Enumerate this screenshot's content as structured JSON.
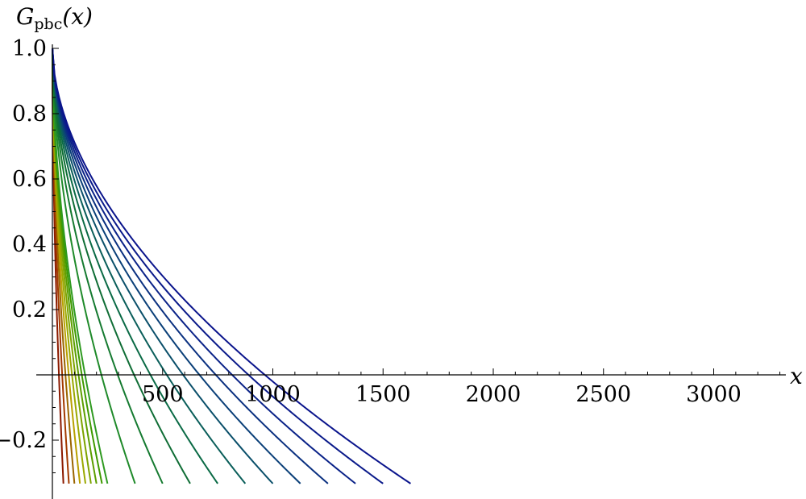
{
  "chart_data": {
    "type": "line",
    "title": "",
    "ylabel": {
      "main": "G",
      "subscript": "pbc",
      "arg": "(x)"
    },
    "xlabel": "x",
    "xlim": [
      0,
      3300
    ],
    "ylim": [
      -0.345,
      1.05
    ],
    "x_ticks": [
      500,
      1000,
      1500,
      2000,
      2500,
      3000
    ],
    "x_tick_labels": [
      "500",
      "1000",
      "1500",
      "2000",
      "2500",
      "3000"
    ],
    "y_ticks": [
      -0.2,
      0.2,
      0.4,
      0.6,
      0.8,
      1.0
    ],
    "y_tick_labels": [
      "−0.2",
      "0.2",
      "0.4",
      "0.6",
      "0.8",
      "1.0"
    ],
    "grid": false,
    "legend": "none",
    "series_form": "each curve starts at G(0)=1 and decays to about -0.333 at x = L/2",
    "series": [
      {
        "half_period": 50,
        "color": "#8b1a00",
        "value_at_end": -0.333
      },
      {
        "half_period": 75,
        "color": "#a33a00",
        "value_at_end": -0.333
      },
      {
        "half_period": 100,
        "color": "#9a6500",
        "value_at_end": -0.333
      },
      {
        "half_period": 125,
        "color": "#b8a000",
        "value_at_end": -0.333
      },
      {
        "half_period": 150,
        "color": "#9aa800",
        "value_at_end": -0.333
      },
      {
        "half_period": 175,
        "color": "#7da300",
        "value_at_end": -0.333
      },
      {
        "half_period": 200,
        "color": "#5c9e00",
        "value_at_end": -0.333
      },
      {
        "half_period": 225,
        "color": "#3f9a00",
        "value_at_end": -0.333
      },
      {
        "half_period": 250,
        "color": "#2f9a20",
        "value_at_end": -0.333
      },
      {
        "half_period": 375,
        "color": "#1f8a2a",
        "value_at_end": -0.333
      },
      {
        "half_period": 500,
        "color": "#157a30",
        "value_at_end": -0.333
      },
      {
        "half_period": 625,
        "color": "#0f6d35",
        "value_at_end": -0.333
      },
      {
        "half_period": 750,
        "color": "#0a6a45",
        "value_at_end": -0.333
      },
      {
        "half_period": 875,
        "color": "#0a5e5a",
        "value_at_end": -0.333
      },
      {
        "half_period": 1000,
        "color": "#0a4f6a",
        "value_at_end": -0.333
      },
      {
        "half_period": 1125,
        "color": "#0a3f78",
        "value_at_end": -0.333
      },
      {
        "half_period": 1250,
        "color": "#0a3080",
        "value_at_end": -0.333
      },
      {
        "half_period": 1375,
        "color": "#0a2288",
        "value_at_end": -0.333
      },
      {
        "half_period": 1500,
        "color": "#0a1a8a",
        "value_at_end": -0.333
      },
      {
        "half_period": 1625,
        "color": "#0a148c",
        "value_at_end": -0.333
      }
    ]
  }
}
